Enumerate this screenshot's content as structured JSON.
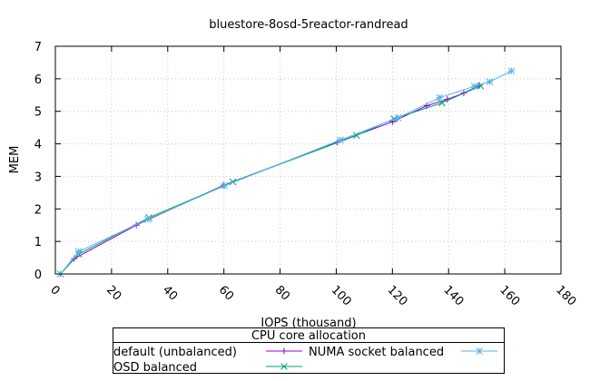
{
  "chart_data": {
    "type": "line",
    "title": "bluestore-8osd-5reactor-randread",
    "xlabel": "IOPS (thousand)",
    "ylabel": "MEM",
    "xlim": [
      0,
      180
    ],
    "ylim": [
      0,
      7
    ],
    "xticks": [
      "0",
      "20",
      "40",
      "60",
      "80",
      "100",
      "120",
      "140",
      "160",
      "180"
    ],
    "yticks": [
      "0",
      "1",
      "2",
      "3",
      "4",
      "5",
      "6",
      "7"
    ],
    "grid": true,
    "legend": {
      "title": "CPU core allocation",
      "placement": "bottom"
    },
    "series": [
      {
        "name": "default (unbalanced)",
        "color": "#9400d3",
        "marker": "plus",
        "points": [
          [
            1.8,
            0
          ],
          [
            6.7,
            0.47
          ],
          [
            28.8,
            1.5
          ],
          [
            60,
            2.73
          ],
          [
            100.4,
            4.05
          ],
          [
            120.1,
            4.68
          ],
          [
            132.2,
            5.17
          ],
          [
            139.5,
            5.37
          ],
          [
            145.4,
            5.56
          ],
          [
            151,
            5.8
          ]
        ]
      },
      {
        "name": "OSD balanced",
        "color": "#009e73",
        "marker": "cross",
        "points": [
          [
            1.8,
            0
          ],
          [
            8.3,
            0.61
          ],
          [
            33.3,
            1.73
          ],
          [
            63.2,
            2.83
          ],
          [
            107.2,
            4.26
          ],
          [
            120.6,
            4.77
          ],
          [
            137.6,
            5.26
          ],
          [
            151.4,
            5.78
          ]
        ]
      },
      {
        "name": "NUMA socket balanced",
        "color": "#56b4e9",
        "marker": "star",
        "points": [
          [
            1.8,
            0
          ],
          [
            8.3,
            0.69
          ],
          [
            32.9,
            1.68
          ],
          [
            60.2,
            2.71
          ],
          [
            101.5,
            4.12
          ],
          [
            122,
            4.8
          ],
          [
            136.8,
            5.42
          ],
          [
            149.2,
            5.77
          ],
          [
            154.6,
            5.91
          ],
          [
            162.4,
            6.24
          ]
        ]
      }
    ]
  }
}
